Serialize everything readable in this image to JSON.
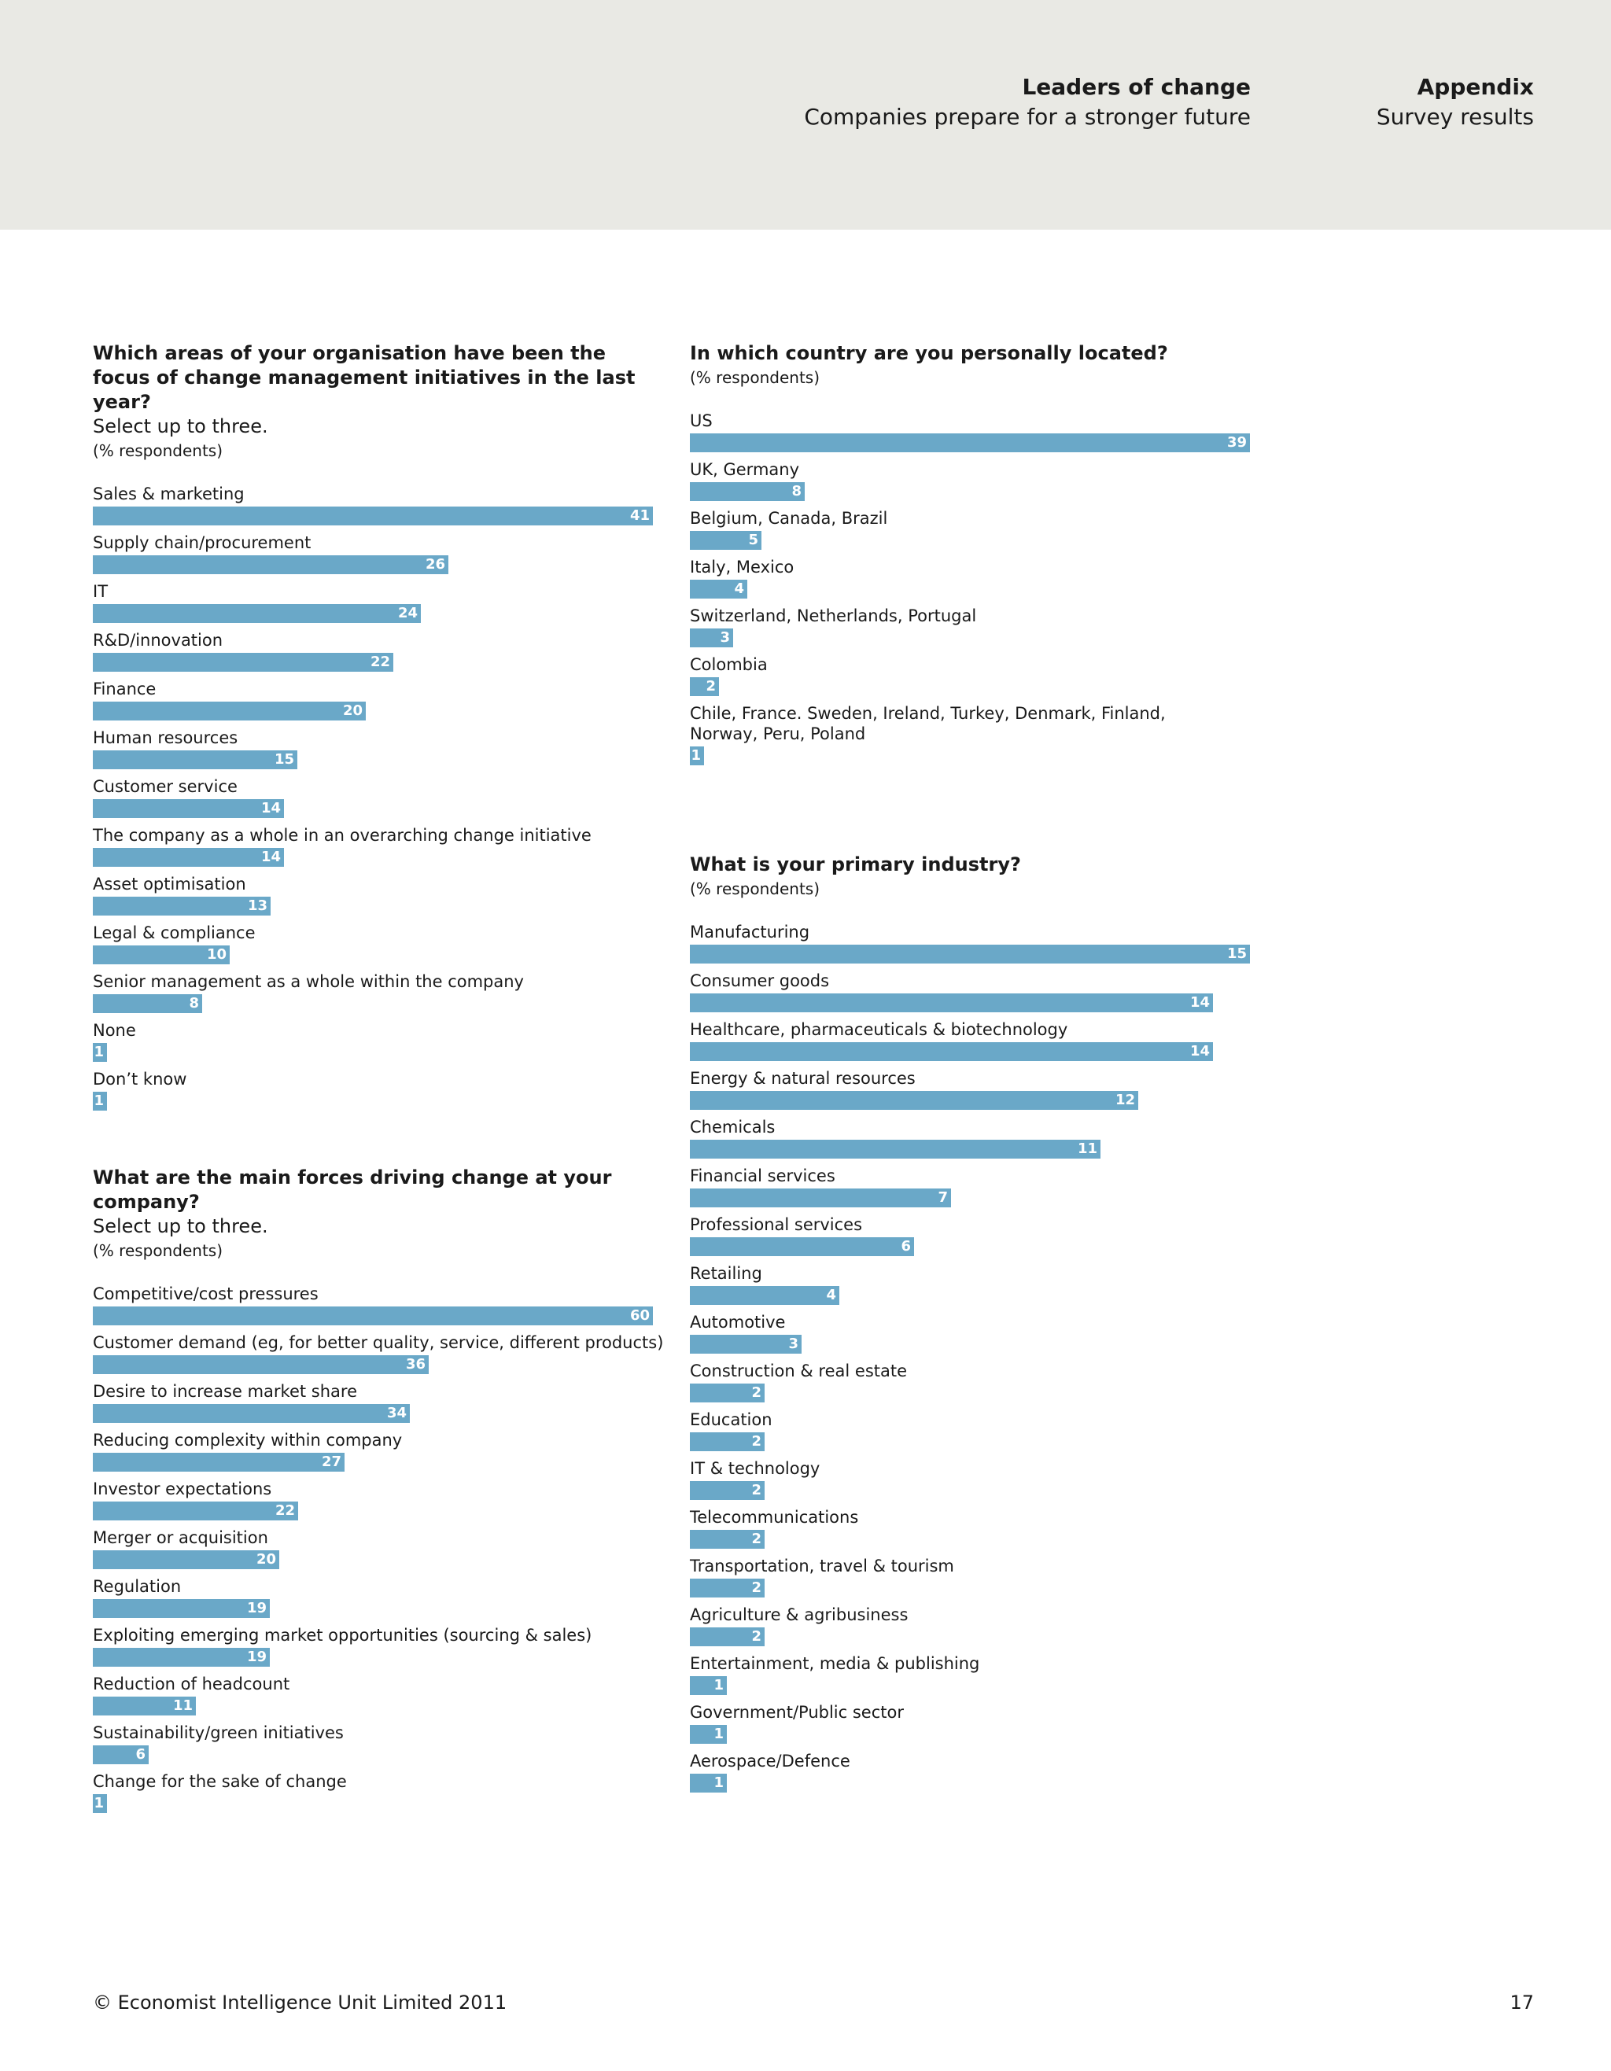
{
  "header": {
    "report_title": "Leaders of change",
    "report_subtitle": "Companies prepare for a stronger future",
    "section_title": "Appendix",
    "section_subtitle": "Survey results"
  },
  "footer": {
    "copyright": "© Economist Intelligence Unit Limited 2011",
    "page_number": "17"
  },
  "colors": {
    "bar": "#6aa8c8",
    "header_band": "#e9e9e4"
  },
  "chart_data": [
    {
      "type": "bar",
      "title": "Which areas of your organisation have been the focus of change management initiatives in the last year?",
      "subtitle": "Select up to three.",
      "note": "(% respondents)",
      "scale_max": 41,
      "categories": [
        "Sales & marketing",
        "Supply chain/procurement",
        "IT",
        "R&D/innovation",
        "Finance",
        "Human resources",
        "Customer service",
        "The company as a whole in an overarching change initiative",
        "Asset optimisation",
        "Legal & compliance",
        "Senior management as a whole within the company",
        "None",
        "Don’t know"
      ],
      "values": [
        41,
        26,
        24,
        22,
        20,
        15,
        14,
        14,
        13,
        10,
        8,
        1,
        1
      ]
    },
    {
      "type": "bar",
      "title": "What are the main forces driving change at your company?",
      "subtitle": "Select up to three.",
      "note": "(% respondents)",
      "scale_max": 60,
      "categories": [
        "Competitive/cost pressures",
        "Customer demand (eg, for better quality, service, different products)",
        "Desire to increase market share",
        "Reducing complexity within company",
        "Investor expectations",
        "Merger or acquisition",
        "Regulation",
        "Exploiting emerging market opportunities (sourcing & sales)",
        "Reduction of headcount",
        "Sustainability/green initiatives",
        "Change for the sake of change"
      ],
      "values": [
        60,
        36,
        34,
        27,
        22,
        20,
        19,
        19,
        11,
        6,
        1
      ]
    },
    {
      "type": "bar",
      "title": "In which country are you personally located?",
      "subtitle": "",
      "note": "(% respondents)",
      "scale_max": 39,
      "categories": [
        "US",
        "UK, Germany",
        "Belgium, Canada, Brazil",
        "Italy, Mexico",
        "Switzerland, Netherlands, Portugal",
        "Colombia",
        "Chile, France. Sweden, Ireland, Turkey, Denmark, Finland,\nNorway, Peru, Poland"
      ],
      "values": [
        39,
        8,
        5,
        4,
        3,
        2,
        1
      ]
    },
    {
      "type": "bar",
      "title": "What is your primary industry?",
      "subtitle": "",
      "note": "(% respondents)",
      "scale_max": 15,
      "categories": [
        "Manufacturing",
        "Consumer goods",
        "Healthcare, pharmaceuticals & biotechnology",
        "Energy & natural resources",
        "Chemicals",
        "Financial services",
        "Professional services",
        "Retailing",
        "Automotive",
        "Construction & real estate",
        "Education",
        "IT & technology",
        "Telecommunications",
        "Transportation, travel & tourism",
        "Agriculture & agribusiness",
        "Entertainment, media & publishing",
        "Government/Public sector",
        "Aerospace/Defence"
      ],
      "values": [
        15,
        14,
        14,
        12,
        11,
        7,
        6,
        4,
        3,
        2,
        2,
        2,
        2,
        2,
        2,
        1,
        1,
        1
      ]
    }
  ]
}
